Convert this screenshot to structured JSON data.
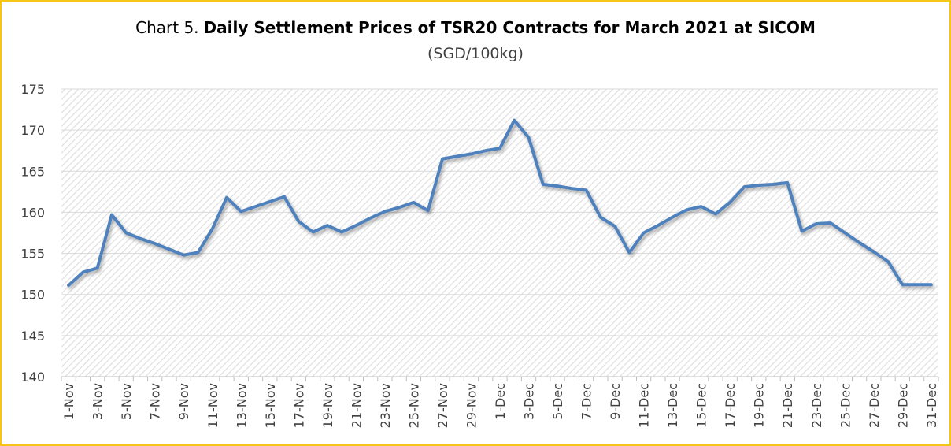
{
  "chart_data": {
    "type": "line",
    "title_prefix": "Chart 5.",
    "title": "Daily Settlement Prices of TSR20 Contracts for March 2021 at SICOM",
    "subtitle": "(SGD/100kg)",
    "categories": [
      "1-Nov",
      null,
      "3-Nov",
      null,
      "5-Nov",
      null,
      "7-Nov",
      null,
      "9-Nov",
      null,
      "11-Nov",
      null,
      "13-Nov",
      null,
      "15-Nov",
      null,
      "17-Nov",
      null,
      "19-Nov",
      null,
      "21-Nov",
      null,
      "23-Nov",
      null,
      "25-Nov",
      null,
      "27-Nov",
      null,
      "29-Nov",
      null,
      "1-Dec",
      null,
      "3-Dec",
      null,
      "5-Dec",
      null,
      "7-Dec",
      null,
      "9-Dec",
      null,
      "11-Dec",
      null,
      "13-Dec",
      null,
      "15-Dec",
      null,
      "17-Dec",
      null,
      "19-Dec",
      null,
      "21-Dec",
      null,
      "23-Dec",
      null,
      "25-Dec",
      null,
      "27-Dec",
      null,
      "29-Dec",
      null,
      "31-Dec"
    ],
    "series": [
      {
        "color": "#4f81bd",
        "values": [
          151.1,
          152.7,
          153.2,
          159.7,
          157.5,
          156.8,
          156.2,
          155.5,
          154.8,
          155.1,
          158.0,
          161.8,
          160.1,
          160.7,
          161.3,
          161.9,
          158.9,
          157.6,
          158.4,
          157.6,
          158.4,
          159.3,
          160.1,
          160.6,
          161.2,
          160.2,
          166.5,
          166.8,
          167.1,
          167.5,
          167.8,
          171.2,
          169.1,
          163.4,
          163.2,
          162.9,
          162.7,
          159.4,
          158.3,
          155.1,
          157.5,
          158.4,
          159.4,
          160.3,
          160.7,
          159.8,
          161.2,
          163.1,
          163.3,
          163.4,
          163.6,
          157.7,
          158.6,
          158.7,
          157.5,
          156.3,
          155.2,
          154.0,
          151.2,
          151.2,
          151.2
        ]
      }
    ],
    "ylim": [
      140,
      175
    ],
    "yticks": [
      140,
      145,
      150,
      155,
      160,
      165,
      170,
      175
    ],
    "grid": true,
    "border_color": "#f5c518"
  }
}
